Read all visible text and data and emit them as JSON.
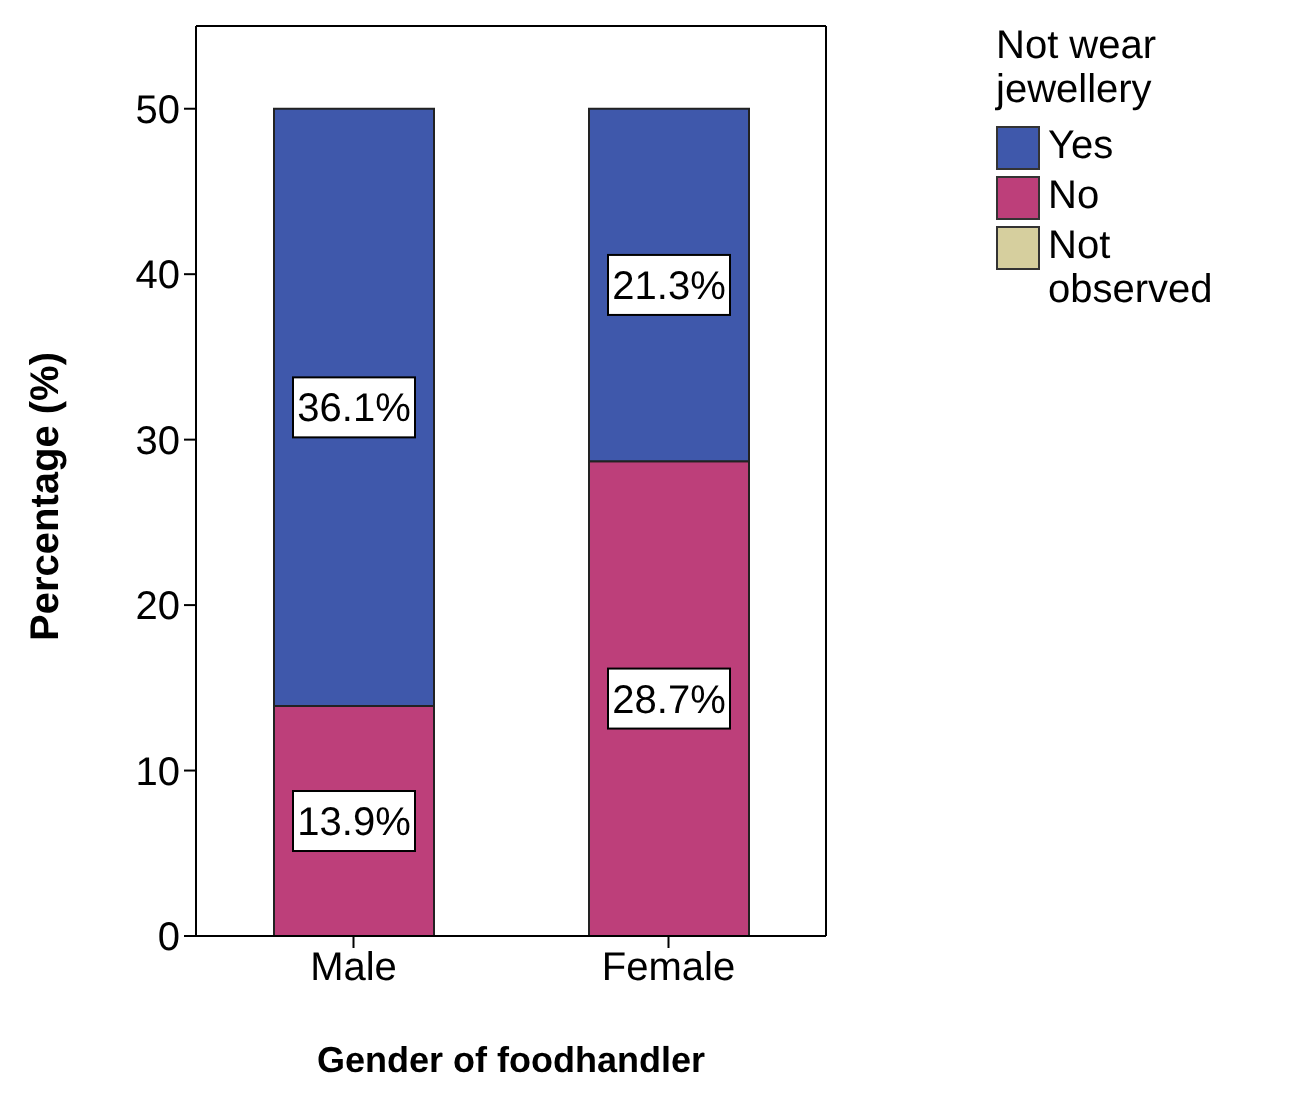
{
  "chart_data": {
    "type": "bar",
    "stacked": true,
    "categories": [
      "Male",
      "Female"
    ],
    "series": [
      {
        "name": "Not observed",
        "color": "#d6cf9e",
        "values": [
          0,
          0
        ]
      },
      {
        "name": "No",
        "color": "#bd3f7a",
        "values": [
          13.9,
          28.7
        ],
        "value_labels": [
          "13.9%",
          "28.7%"
        ]
      },
      {
        "name": "Yes",
        "color": "#3f58ab",
        "values": [
          36.1,
          21.3
        ],
        "value_labels": [
          "36.1%",
          "21.3%"
        ]
      }
    ],
    "xlabel": "Gender of foodhandler",
    "ylabel": "Percentage (%)",
    "legend_title": "Not wear jewellery",
    "legend": "right",
    "ylim": [
      0,
      55
    ],
    "yticks": [
      0,
      10,
      20,
      30,
      40,
      50
    ],
    "grid": false
  }
}
